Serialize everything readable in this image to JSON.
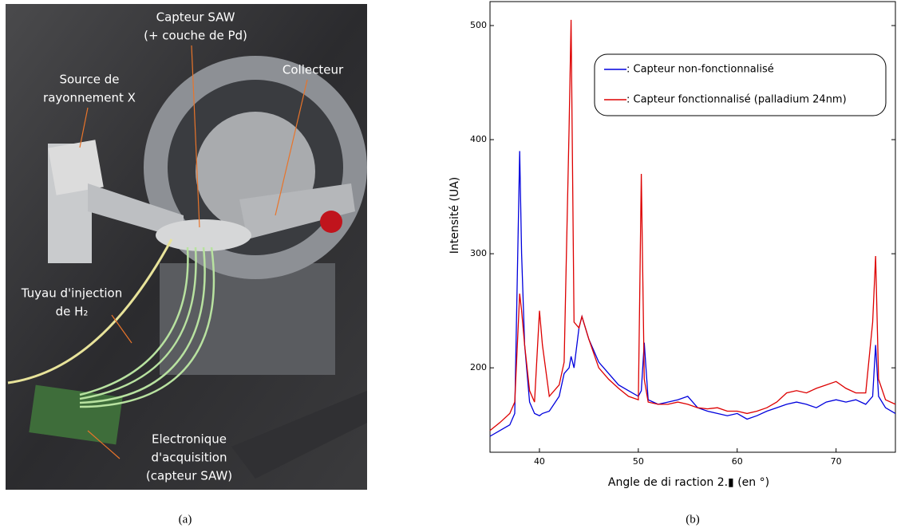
{
  "panel_captions": [
    "(a)",
    "(b)"
  ],
  "photo": {
    "labels": [
      {
        "lines": [
          "Capteur SAW",
          "(+ couche de Pd)"
        ]
      },
      {
        "lines": [
          "Source de",
          "rayonnement X"
        ]
      },
      {
        "lines": [
          "Collecteur"
        ]
      },
      {
        "lines": [
          "Tuyau d'injection",
          "de H₂"
        ]
      },
      {
        "lines": [
          "Electronique",
          "d'acquisition",
          "(capteur SAW)"
        ]
      }
    ]
  },
  "chart_data": {
    "type": "line",
    "x_label": "Angle de di raction 2.▮ (en °)",
    "y_label": "Intensité (UA)",
    "x": [
      35,
      36,
      37,
      37.5,
      38,
      38.2,
      38.5,
      39,
      39.5,
      40,
      40.3,
      41,
      42,
      42.5,
      43,
      43.2,
      43.5,
      44,
      44.3,
      45,
      46,
      47,
      48,
      49,
      50,
      50.3,
      50.6,
      51,
      52,
      53,
      54,
      55,
      56,
      57,
      58,
      59,
      60,
      61,
      62,
      63,
      64,
      65,
      66,
      67,
      68,
      69,
      70,
      71,
      72,
      73,
      73.7,
      74,
      74.3,
      75,
      76
    ],
    "series": [
      {
        "name": ": Capteur non-fonctionnalisé",
        "color": "#0000dd",
        "values": [
          140,
          145,
          150,
          160,
          390,
          300,
          220,
          170,
          160,
          158,
          160,
          162,
          175,
          195,
          200,
          210,
          200,
          235,
          245,
          225,
          205,
          195,
          185,
          180,
          175,
          180,
          222,
          172,
          168,
          170,
          172,
          175,
          165,
          162,
          160,
          158,
          160,
          155,
          158,
          162,
          165,
          168,
          170,
          168,
          165,
          170,
          172,
          170,
          172,
          168,
          175,
          220,
          175,
          165,
          160
        ]
      },
      {
        "name": ": Capteur fonctionnalisé (palladium 24nm)",
        "color": "#dd0000",
        "values": [
          145,
          152,
          160,
          170,
          265,
          250,
          220,
          180,
          170,
          250,
          220,
          175,
          185,
          205,
          410,
          505,
          240,
          235,
          245,
          225,
          200,
          190,
          182,
          175,
          172,
          370,
          190,
          170,
          168,
          168,
          170,
          168,
          165,
          164,
          165,
          162,
          162,
          160,
          162,
          165,
          170,
          178,
          180,
          178,
          182,
          185,
          188,
          182,
          178,
          178,
          240,
          298,
          190,
          172,
          168
        ]
      }
    ],
    "xlim": [
      35,
      76
    ],
    "ylim": [
      126,
      521
    ],
    "xticks": [
      40,
      50,
      60,
      70
    ],
    "yticks": [
      200,
      300,
      400,
      500
    ],
    "legend": "upper right"
  }
}
